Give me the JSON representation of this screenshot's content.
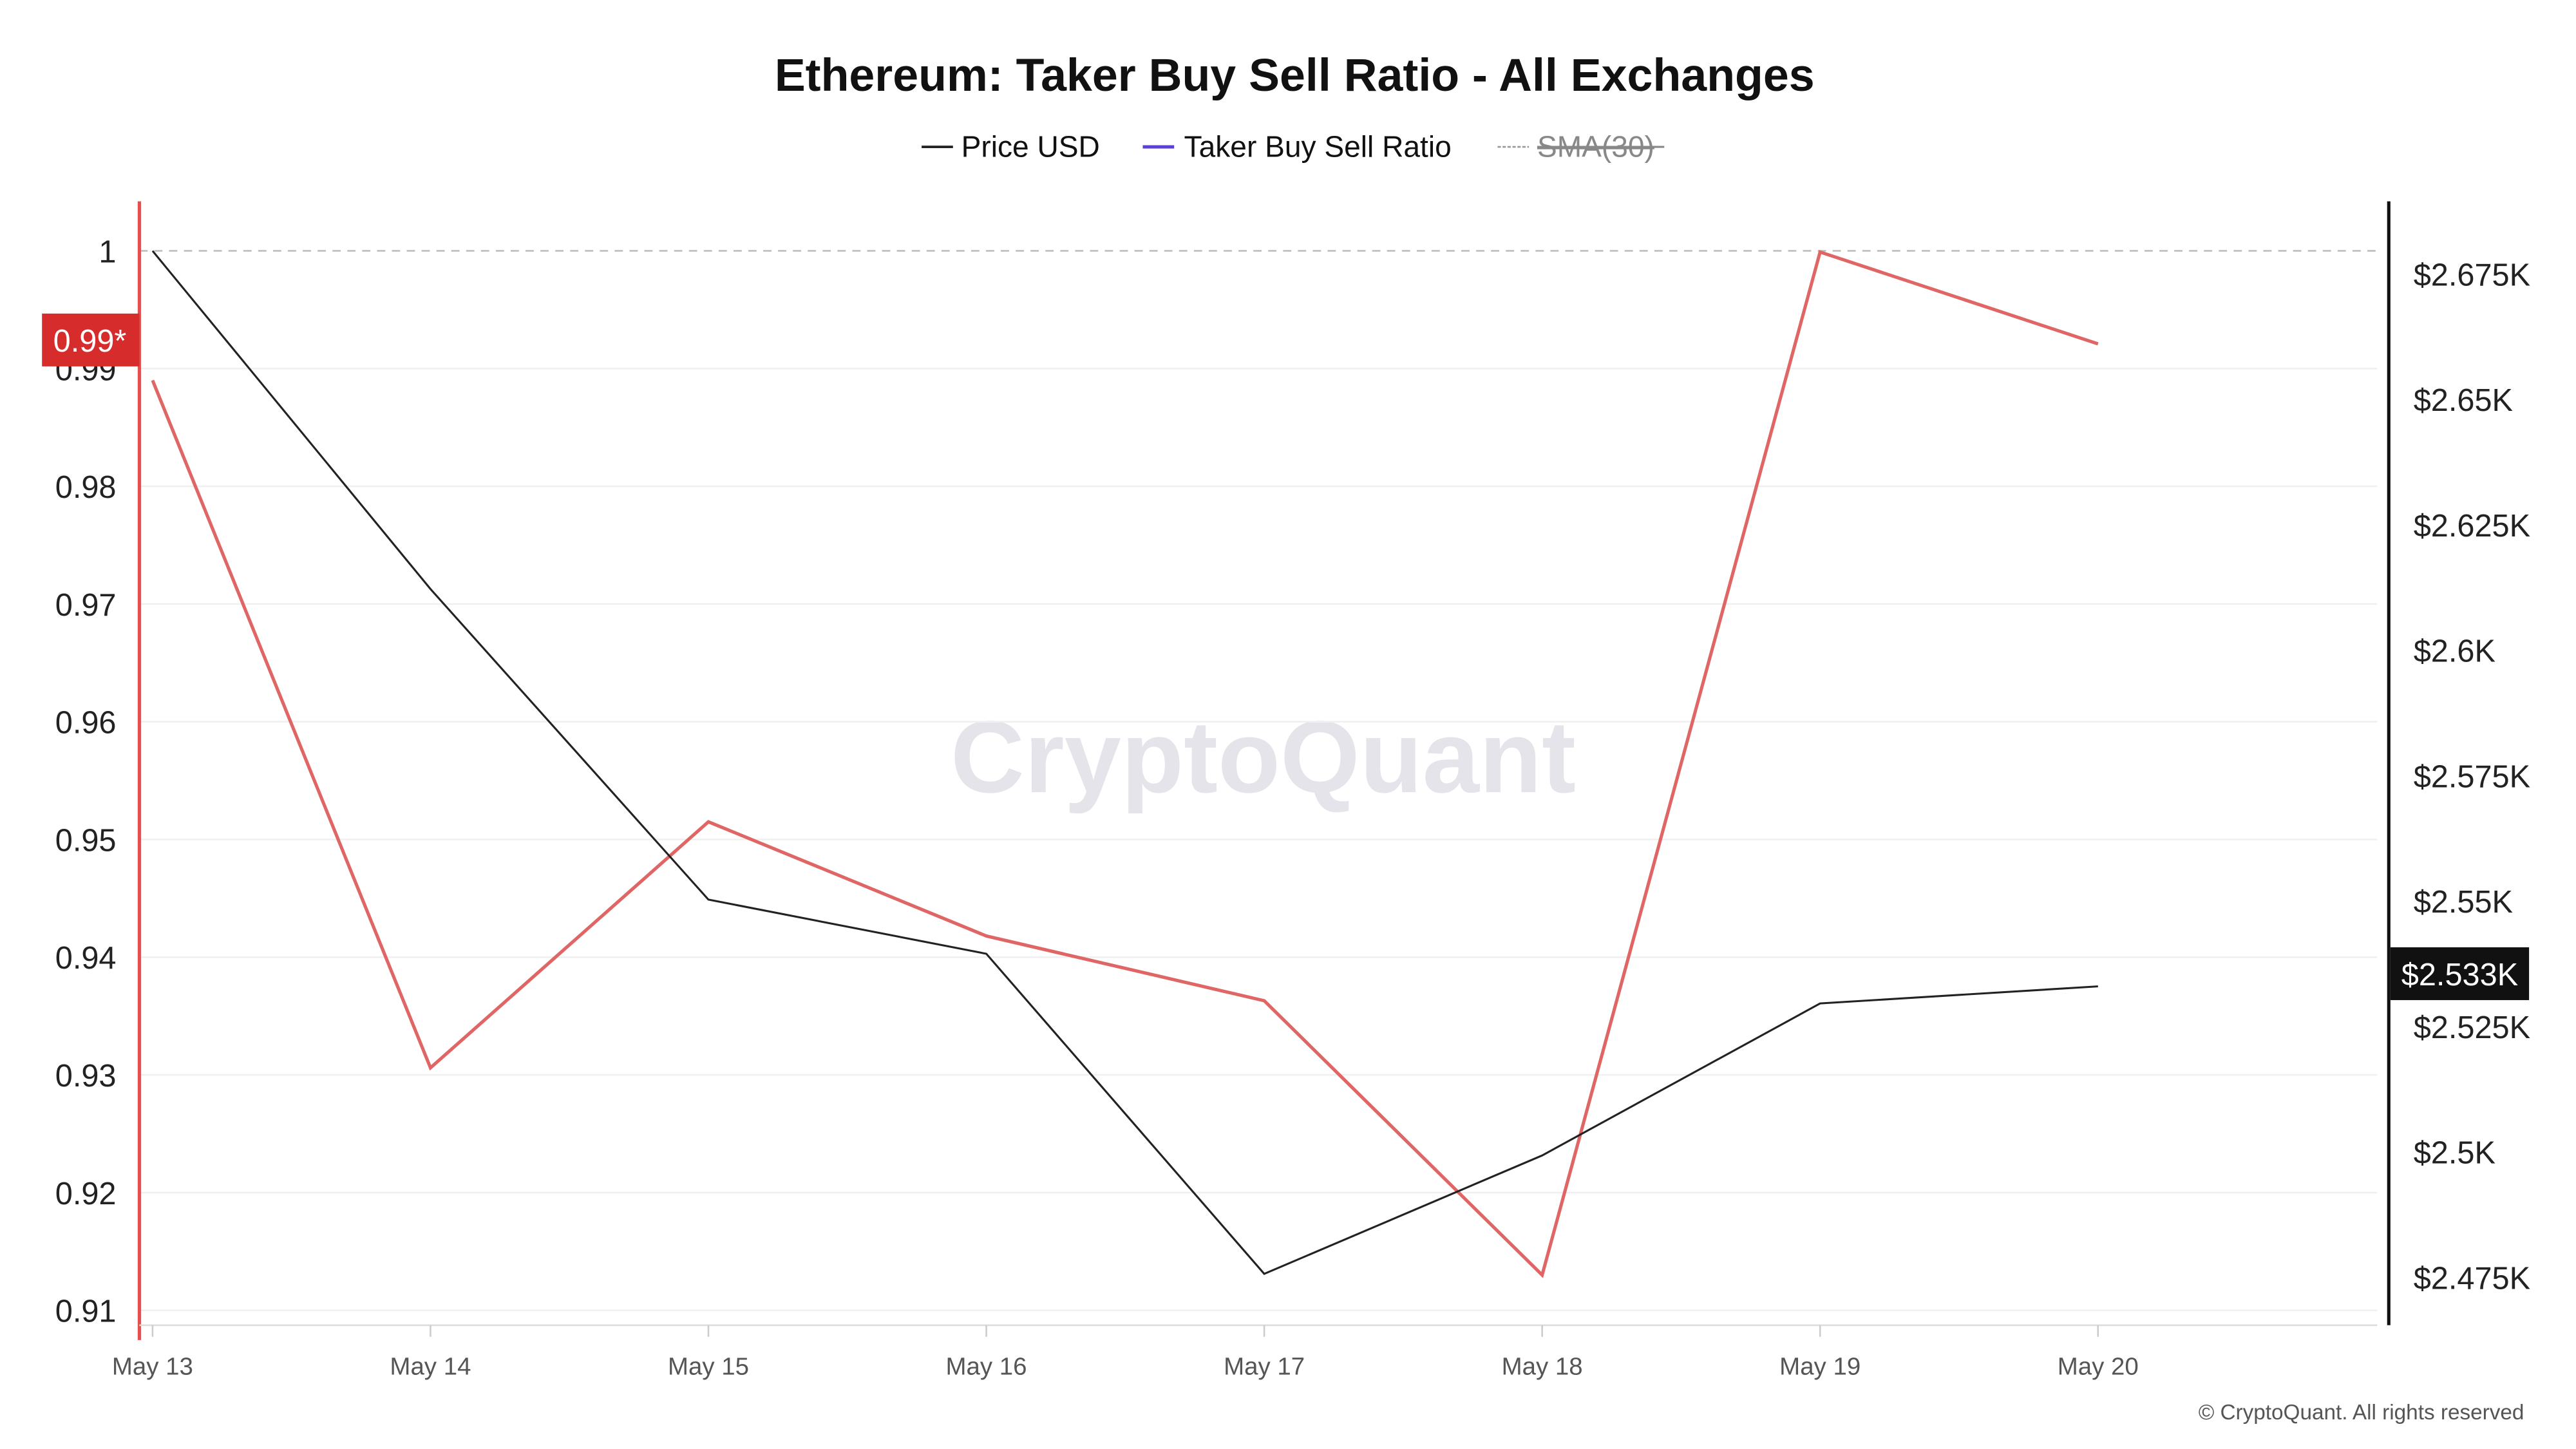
{
  "chart_data": {
    "type": "line",
    "title": "Ethereum: Taker Buy Sell Ratio - All Exchanges",
    "legend": [
      {
        "name": "Price USD",
        "color": "#222222",
        "style": "solid",
        "hidden": false
      },
      {
        "name": "Taker Buy Sell Ratio",
        "color": "#5b3fd6",
        "style": "solid",
        "hidden": false
      },
      {
        "name": "SMA(30)",
        "color": "#999999",
        "style": "dashed",
        "hidden": true
      }
    ],
    "legend_placement": "top-center",
    "categories": [
      "May 13",
      "May 14",
      "May 15",
      "May 16",
      "May 17",
      "May 18",
      "May 19",
      "May 20"
    ],
    "series": [
      {
        "name": "Taker Buy Sell Ratio",
        "axis": "left",
        "color": "#e06666",
        "values": [
          0.989,
          0.9306,
          0.9515,
          0.9418,
          0.9363,
          0.913,
          0.9999,
          0.9921
        ]
      },
      {
        "name": "Price USD",
        "axis": "right",
        "color": "#222222",
        "values": [
          2679.6,
          2612.2,
          2550.3,
          2539.5,
          2475.7,
          2499.3,
          2529.6,
          2533
        ]
      }
    ],
    "left_axis": {
      "ticks": [
        "1",
        "0.99",
        "0.98",
        "0.97",
        "0.96",
        "0.95",
        "0.94",
        "0.93",
        "0.92",
        "0.91"
      ],
      "tick_values": [
        1,
        0.99,
        0.98,
        0.97,
        0.96,
        0.95,
        0.94,
        0.93,
        0.92,
        0.91
      ],
      "ylim": [
        0.9085,
        1.004
      ]
    },
    "right_axis": {
      "ticks": [
        "$2.675K",
        "$2.65K",
        "$2.625K",
        "$2.6K",
        "$2.575K",
        "$2.55K",
        "$2.525K",
        "$2.5K",
        "$2.475K"
      ],
      "tick_values": [
        2675,
        2650,
        2625,
        2600,
        2575,
        2550,
        2525,
        2500,
        2475
      ]
    },
    "reference_line": {
      "value": 1,
      "axis": "left",
      "style": "dashed"
    },
    "left_badge": {
      "label": "0.99*",
      "value": 0.99,
      "color": "#d62c2c"
    },
    "right_badge": {
      "label": "$2.533K",
      "value": 2533,
      "color": "#111111"
    },
    "grid": true
  },
  "watermark": "CryptoQuant",
  "footer": "© CryptoQuant. All rights reserved"
}
